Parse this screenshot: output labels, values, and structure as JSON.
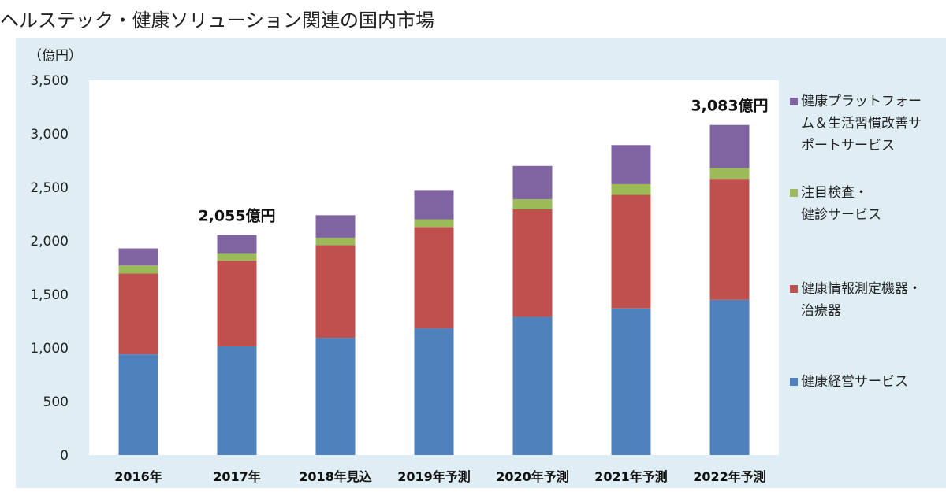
{
  "page_title": "ヘルステック・健康ソリューション関連の国内市場",
  "chart_data": {
    "type": "bar",
    "stacked": true,
    "title": "ヘルステック・健康ソリューション関連の国内市場",
    "ylabel": "（億円）",
    "xlabel": "",
    "ylim": [
      0,
      3500
    ],
    "yticks": [
      0,
      500,
      1000,
      1500,
      2000,
      2500,
      3000,
      3500
    ],
    "ytick_labels": [
      "0",
      "500",
      "1,000",
      "1,500",
      "2,000",
      "2,500",
      "3,000",
      "3,500"
    ],
    "grid": false,
    "legend_position": "right",
    "categories": [
      "2016年",
      "2017年",
      "2018年見込",
      "2019年予測",
      "2020年予測",
      "2021年予測",
      "2022年予測"
    ],
    "series": [
      {
        "name": "健康経営サービス",
        "color": "#4f81bd",
        "values": [
          940,
          1015,
          1095,
          1185,
          1290,
          1370,
          1450
        ]
      },
      {
        "name": "健康情報測定機器・治療器",
        "color": "#c0504d",
        "values": [
          755,
          800,
          865,
          945,
          1005,
          1060,
          1130
        ]
      },
      {
        "name": "注目検査・健診サービス",
        "color": "#9bbb59",
        "values": [
          75,
          70,
          70,
          70,
          95,
          100,
          100
        ]
      },
      {
        "name": "健康プラットフォーム＆生活習慣改善サポートサービス",
        "color": "#8064a2",
        "values": [
          160,
          170,
          210,
          275,
          310,
          365,
          403
        ]
      }
    ],
    "legend": [
      {
        "lines": [
          "健康プラットフォー",
          "ム＆生活習慣改善サ",
          "ポートサービス"
        ],
        "color": "#8064a2"
      },
      {
        "lines": [
          "注目検査・",
          "健診サービス"
        ],
        "color": "#9bbb59"
      },
      {
        "lines": [
          "健康情報測定機器・",
          "治療器"
        ],
        "color": "#c0504d"
      },
      {
        "lines": [
          "健康経営サービス"
        ],
        "color": "#4f81bd"
      }
    ],
    "annotations": [
      {
        "category_index": 1,
        "text": "2,055億円"
      },
      {
        "category_index": 6,
        "text": "3,083億円"
      }
    ]
  }
}
